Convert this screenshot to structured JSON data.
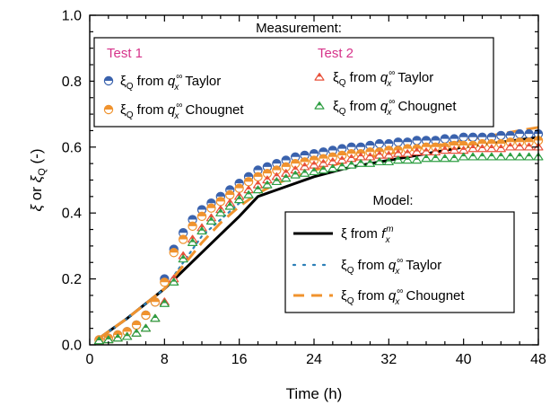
{
  "chart_data": {
    "type": "line",
    "xlabel": "Time (h)",
    "ylabel_parts": [
      "ξ",
      " or ",
      "ξ",
      "Q",
      " (-)"
    ],
    "xlim": [
      0,
      48
    ],
    "ylim": [
      0,
      1.0
    ],
    "x_ticks": [
      "0",
      "8",
      "16",
      "24",
      "32",
      "40",
      "48"
    ],
    "y_ticks": [
      "0.0",
      "0.2",
      "0.4",
      "0.6",
      "0.8",
      "1.0"
    ],
    "grid": false,
    "legend_measurement": {
      "header": "Measurement:",
      "groups": [
        "Test 1",
        "Test 2"
      ],
      "group_color": "#d6338a",
      "placement": "top"
    },
    "legend_model": {
      "header": "Model:",
      "placement": "right"
    },
    "label_parts": {
      "xi": "ξ",
      "sub_q": "Q",
      "from": " from ",
      "q": "q",
      "sub_x": "x",
      "sup_inf": "∞",
      "f": "f",
      "sup_m": "m",
      "taylor": " Taylor",
      "chougnet": " Chougnet"
    },
    "measurement_series": [
      {
        "test": "Test 1",
        "method": "Taylor",
        "marker": "circle",
        "color": "#3a62ad",
        "x": [
          1,
          2,
          3,
          4,
          5,
          6,
          7,
          8,
          9,
          10,
          11,
          12,
          13,
          14,
          15,
          16,
          17,
          18,
          19,
          20,
          21,
          22,
          23,
          24,
          25,
          26,
          27,
          28,
          29,
          30,
          31,
          32,
          33,
          34,
          35,
          36,
          37,
          38,
          39,
          40,
          41,
          42,
          43,
          44,
          45,
          46,
          47,
          48
        ],
        "y": [
          0.015,
          0.02,
          0.03,
          0.04,
          0.06,
          0.09,
          0.13,
          0.2,
          0.29,
          0.34,
          0.38,
          0.41,
          0.43,
          0.45,
          0.47,
          0.49,
          0.51,
          0.53,
          0.54,
          0.55,
          0.56,
          0.57,
          0.575,
          0.58,
          0.585,
          0.59,
          0.595,
          0.6,
          0.6,
          0.605,
          0.61,
          0.61,
          0.615,
          0.615,
          0.62,
          0.62,
          0.62,
          0.625,
          0.625,
          0.63,
          0.63,
          0.63,
          0.63,
          0.635,
          0.635,
          0.64,
          0.64,
          0.64
        ]
      },
      {
        "test": "Test 1",
        "method": "Chougnet",
        "marker": "circle",
        "color": "#f0932e",
        "x": [
          1,
          2,
          3,
          4,
          5,
          6,
          7,
          8,
          9,
          10,
          11,
          12,
          13,
          14,
          15,
          16,
          17,
          18,
          19,
          20,
          21,
          22,
          23,
          24,
          25,
          26,
          27,
          28,
          29,
          30,
          31,
          32,
          33,
          34,
          35,
          36,
          37,
          38,
          39,
          40,
          41,
          42,
          43,
          44,
          45,
          46,
          47,
          48
        ],
        "y": [
          0.015,
          0.02,
          0.03,
          0.04,
          0.06,
          0.09,
          0.13,
          0.19,
          0.28,
          0.32,
          0.36,
          0.39,
          0.415,
          0.435,
          0.455,
          0.475,
          0.495,
          0.51,
          0.52,
          0.53,
          0.54,
          0.55,
          0.555,
          0.56,
          0.565,
          0.57,
          0.575,
          0.58,
          0.58,
          0.585,
          0.585,
          0.59,
          0.59,
          0.595,
          0.595,
          0.6,
          0.6,
          0.6,
          0.605,
          0.605,
          0.605,
          0.61,
          0.61,
          0.61,
          0.615,
          0.615,
          0.615,
          0.62
        ]
      },
      {
        "test": "Test 2",
        "method": "Taylor",
        "marker": "triangle",
        "color": "#e8503a",
        "x": [
          1,
          2,
          3,
          4,
          5,
          6,
          7,
          8,
          9,
          10,
          11,
          12,
          13,
          14,
          15,
          16,
          17,
          18,
          19,
          20,
          21,
          22,
          23,
          24,
          25,
          26,
          27,
          28,
          29,
          30,
          31,
          32,
          33,
          34,
          35,
          36,
          37,
          38,
          39,
          40,
          41,
          42,
          43,
          44,
          45,
          46,
          47,
          48
        ],
        "y": [
          0.012,
          0.015,
          0.02,
          0.025,
          0.035,
          0.05,
          0.08,
          0.13,
          0.2,
          0.27,
          0.32,
          0.355,
          0.385,
          0.41,
          0.43,
          0.45,
          0.47,
          0.485,
          0.5,
          0.51,
          0.52,
          0.53,
          0.54,
          0.545,
          0.55,
          0.555,
          0.56,
          0.565,
          0.57,
          0.57,
          0.575,
          0.575,
          0.58,
          0.58,
          0.585,
          0.585,
          0.585,
          0.59,
          0.59,
          0.59,
          0.595,
          0.595,
          0.595,
          0.595,
          0.6,
          0.6,
          0.6,
          0.6
        ]
      },
      {
        "test": "Test 2",
        "method": "Chougnet",
        "marker": "triangle",
        "color": "#2e9e43",
        "x": [
          1,
          2,
          3,
          4,
          5,
          6,
          7,
          8,
          9,
          10,
          11,
          12,
          13,
          14,
          15,
          16,
          17,
          18,
          19,
          20,
          21,
          22,
          23,
          24,
          25,
          26,
          27,
          28,
          29,
          30,
          31,
          32,
          33,
          34,
          35,
          36,
          37,
          38,
          39,
          40,
          41,
          42,
          43,
          44,
          45,
          46,
          47,
          48
        ],
        "y": [
          0.012,
          0.015,
          0.02,
          0.025,
          0.035,
          0.05,
          0.08,
          0.125,
          0.19,
          0.26,
          0.31,
          0.345,
          0.375,
          0.4,
          0.42,
          0.44,
          0.455,
          0.47,
          0.485,
          0.495,
          0.505,
          0.515,
          0.52,
          0.525,
          0.53,
          0.535,
          0.54,
          0.545,
          0.55,
          0.55,
          0.555,
          0.555,
          0.56,
          0.56,
          0.56,
          0.565,
          0.565,
          0.565,
          0.565,
          0.57,
          0.57,
          0.57,
          0.57,
          0.57,
          0.57,
          0.57,
          0.57,
          0.57
        ]
      }
    ],
    "model_series": [
      {
        "label": "xi_fm",
        "style": "solid",
        "color": "#000000",
        "x": [
          1,
          4,
          8,
          12,
          16,
          18,
          20,
          24,
          28,
          32,
          36,
          40,
          44,
          48
        ],
        "y": [
          0.02,
          0.08,
          0.17,
          0.28,
          0.39,
          0.45,
          0.47,
          0.51,
          0.54,
          0.56,
          0.58,
          0.6,
          0.615,
          0.63
        ]
      },
      {
        "label": "xiQ_taylor",
        "style": "dotted",
        "color": "#2c7fb8",
        "x": [
          1,
          4,
          8,
          10,
          12,
          14,
          16
        ],
        "y": [
          0.02,
          0.08,
          0.17,
          0.25,
          0.33,
          0.38,
          0.43
        ]
      },
      {
        "label": "xiQ_chougnet",
        "style": "dashed",
        "color": "#f0932e",
        "x": [
          1,
          4,
          8,
          10,
          12,
          14,
          16,
          18,
          20,
          24,
          28,
          32,
          36,
          40,
          44,
          48
        ],
        "y": [
          0.02,
          0.08,
          0.17,
          0.24,
          0.31,
          0.37,
          0.42,
          0.46,
          0.49,
          0.53,
          0.56,
          0.58,
          0.6,
          0.62,
          0.64,
          0.66
        ]
      }
    ]
  }
}
